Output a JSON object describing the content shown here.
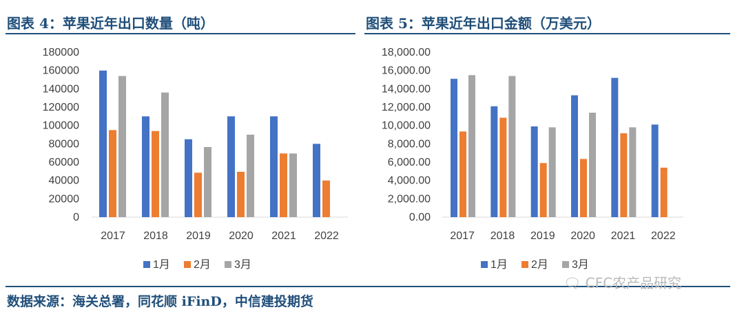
{
  "left_panel": {
    "title": "图表 4：苹果近年出口数量（吨）"
  },
  "right_panel": {
    "title": "图表 5：苹果近年出口金额（万美元）"
  },
  "source_text": "数据来源：海关总署，同花顺 iFinD，中信建投期货",
  "watermark": "CFC农产品研究",
  "colors": {
    "jan": "#4472c4",
    "feb": "#ed7d31",
    "mar": "#a5a5a5",
    "title": "#1f4e79"
  },
  "chart_data": [
    {
      "type": "bar",
      "categories": [
        "2017",
        "2018",
        "2019",
        "2020",
        "2021",
        "2022"
      ],
      "series": [
        {
          "name": "1月",
          "values": [
            160000,
            110000,
            85000,
            110000,
            110000,
            80000
          ]
        },
        {
          "name": "2月",
          "values": [
            95000,
            94000,
            48500,
            49500,
            69500,
            40000
          ]
        },
        {
          "name": "3月",
          "values": [
            154000,
            136000,
            76500,
            90000,
            69500,
            null
          ]
        }
      ],
      "ylim": [
        0,
        180000
      ],
      "yticks": [
        "0",
        "20000",
        "40000",
        "60000",
        "80000",
        "100000",
        "120000",
        "140000",
        "160000",
        "180000"
      ],
      "legend": "bottom",
      "grid": false
    },
    {
      "type": "bar",
      "categories": [
        "2017",
        "2018",
        "2019",
        "2020",
        "2021",
        "2022"
      ],
      "series": [
        {
          "name": "1月",
          "values": [
            15100,
            12100,
            9900,
            13300,
            15200,
            10100
          ]
        },
        {
          "name": "2月",
          "values": [
            9350,
            10850,
            5900,
            6350,
            9150,
            5400
          ]
        },
        {
          "name": "3月",
          "values": [
            15500,
            15400,
            9800,
            11400,
            9800,
            null
          ]
        }
      ],
      "ylim": [
        0,
        18000
      ],
      "yticks": [
        "0.00",
        "2,000.00",
        "4,000.00",
        "6,000.00",
        "8,000.00",
        "10,000.00",
        "12,000.00",
        "14,000.00",
        "16,000.00",
        "18,000.00"
      ],
      "legend": "bottom",
      "grid": false
    }
  ]
}
